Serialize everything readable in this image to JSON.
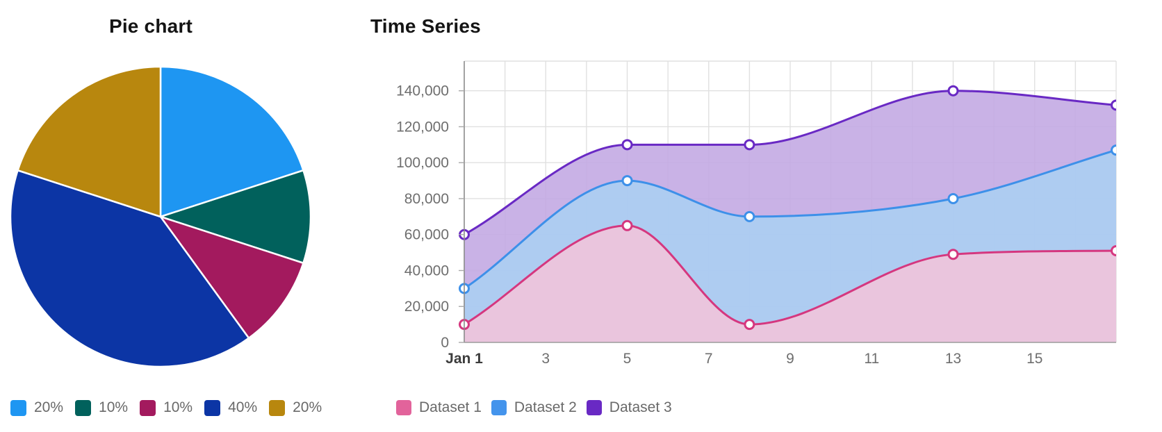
{
  "pie_panel": {
    "title": "Pie chart"
  },
  "ts_panel": {
    "title": "Time Series"
  },
  "chart_data": [
    {
      "type": "pie",
      "title": "Pie chart",
      "start_angle_deg": 0,
      "direction": "clockwise_from_top",
      "slices": [
        {
          "label": "20%",
          "value": 20,
          "color": "#1e96f2"
        },
        {
          "label": "10%",
          "value": 10,
          "color": "#01615c"
        },
        {
          "label": "10%",
          "value": 10,
          "color": "#a31a5e"
        },
        {
          "label": "40%",
          "value": 40,
          "color": "#0c35a5"
        },
        {
          "label": "20%",
          "value": 20,
          "color": "#b8870e"
        }
      ],
      "legend_position": "bottom",
      "slice_border_color": "#ffffff"
    },
    {
      "type": "area",
      "title": "Time Series",
      "x_unit": "date (January)",
      "x": [
        1,
        5,
        8,
        13,
        17
      ],
      "xlim": [
        1,
        17
      ],
      "x_tick_days": [
        1,
        3,
        5,
        7,
        9,
        11,
        13,
        15
      ],
      "x_tick_labels": [
        "Jan 1",
        "3",
        "5",
        "7",
        "9",
        "11",
        "13",
        "15"
      ],
      "x_minor_grid_step_days": 1,
      "ylim": [
        0,
        156500
      ],
      "y_ticks": [
        0,
        20000,
        40000,
        60000,
        80000,
        100000,
        120000,
        140000
      ],
      "y_tick_labels": [
        "0",
        "20,000",
        "40,000",
        "60,000",
        "80,000",
        "100,000",
        "120,000",
        "140,000"
      ],
      "grid": true,
      "curve": "monotone",
      "legend_position": "bottom",
      "series": [
        {
          "name": "Dataset 1",
          "values": [
            10000,
            65000,
            10000,
            49000,
            51000
          ],
          "line_color": "#d5377f",
          "fill_color": "#f2c4d9",
          "legend_color": "#e2639b"
        },
        {
          "name": "Dataset 2",
          "values": [
            30000,
            90000,
            70000,
            80000,
            107000
          ],
          "line_color": "#3d90e9",
          "fill_color": "#aacff2",
          "legend_color": "#4494ec"
        },
        {
          "name": "Dataset 3",
          "values": [
            60000,
            110000,
            110000,
            140000,
            132000
          ],
          "line_color": "#6929c4",
          "fill_color": "#c2a7e2",
          "legend_color": "#6929c4"
        }
      ]
    }
  ],
  "axis_colors": {
    "grid": "#e0e0e0",
    "axis_y": "#8a8a8a",
    "axis_x": "#9c9c9c",
    "tick": "#a8a8a8"
  }
}
